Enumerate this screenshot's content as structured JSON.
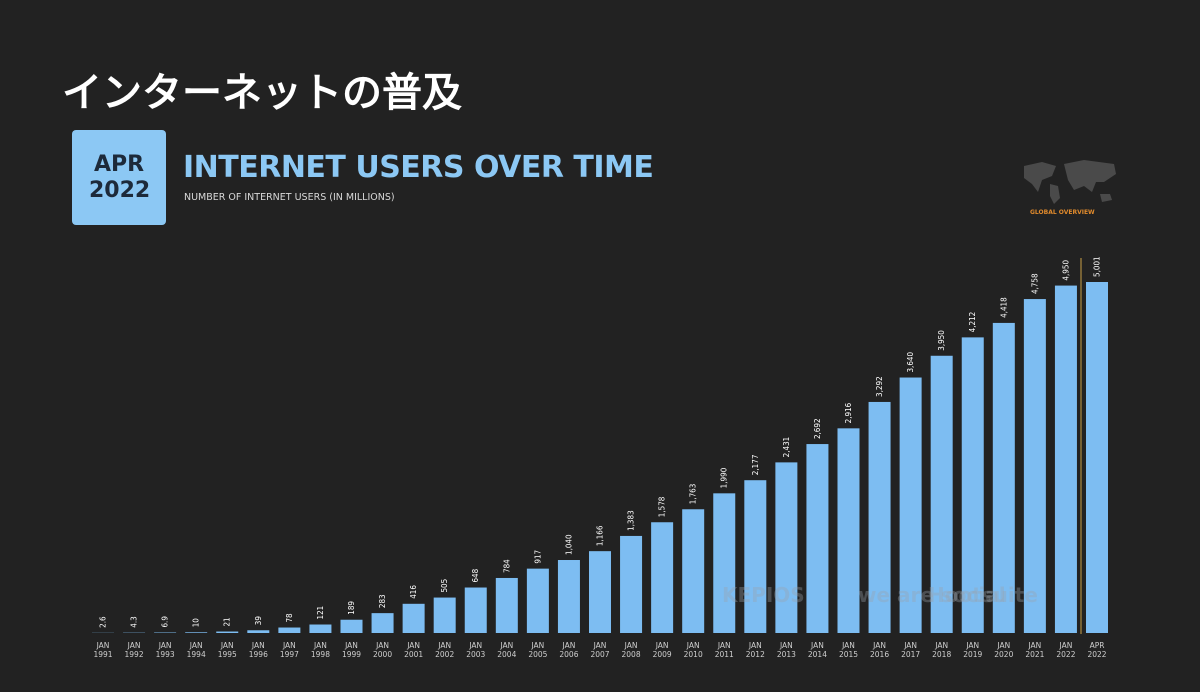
{
  "heading": "インターネットの普及",
  "chart_data": {
    "type": "bar",
    "badge": "APR 2022",
    "title": "INTERNET USERS OVER TIME",
    "subtitle": "NUMBER OF INTERNET USERS (IN MILLIONS)",
    "corner_label": "GLOBAL OVERVIEW",
    "watermarks": [
      "KEPIOS",
      "we are social",
      "Hootsuite"
    ],
    "color": "#7dbdf2",
    "categories": [
      "JAN 1991",
      "JAN 1992",
      "JAN 1993",
      "JAN 1994",
      "JAN 1995",
      "JAN 1996",
      "JAN 1997",
      "JAN 1998",
      "JAN 1999",
      "JAN 2000",
      "JAN 2001",
      "JAN 2002",
      "JAN 2003",
      "JAN 2004",
      "JAN 2005",
      "JAN 2006",
      "JAN 2007",
      "JAN 2008",
      "JAN 2009",
      "JAN 2010",
      "JAN 2011",
      "JAN 2012",
      "JAN 2013",
      "JAN 2014",
      "JAN 2015",
      "JAN 2016",
      "JAN 2017",
      "JAN 2018",
      "JAN 2019",
      "JAN 2020",
      "JAN 2021",
      "JAN 2022",
      "APR 2022"
    ],
    "values": [
      2.6,
      4.3,
      6.9,
      10,
      21,
      39,
      78,
      121,
      189,
      283,
      416,
      505,
      648,
      784,
      917,
      1040,
      1166,
      1383,
      1578,
      1763,
      1990,
      2177,
      2431,
      2692,
      2916,
      3292,
      3640,
      3950,
      4212,
      4418,
      4758,
      4950,
      5001
    ],
    "value_labels": [
      "2.6",
      "4.3",
      "6.9",
      "10",
      "21",
      "39",
      "78",
      "121",
      "189",
      "283",
      "416",
      "505",
      "648",
      "784",
      "917",
      "1,040",
      "1,166",
      "1,383",
      "1,578",
      "1,763",
      "1,990",
      "2,177",
      "2,431",
      "2,692",
      "2,916",
      "3,292",
      "3,640",
      "3,950",
      "4,212",
      "4,418",
      "4,758",
      "4,950",
      "5,001"
    ]
  }
}
